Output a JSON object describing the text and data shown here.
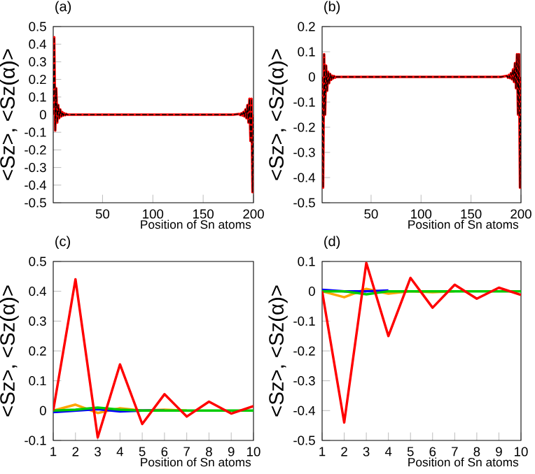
{
  "chart_data": [
    {
      "type": "line",
      "title": "(a)",
      "xlabel": "Position of Sn atoms",
      "ylabel": "<Sz>, <Sz(α)>",
      "xlim": [
        1,
        200
      ],
      "xticks": [
        50,
        100,
        150,
        200
      ],
      "ylim": [
        -0.5,
        0.5
      ],
      "yticks": [
        -0.5,
        -0.4,
        -0.3,
        -0.2,
        -0.1,
        0,
        0.1,
        0.2,
        0.3,
        0.4,
        0.5
      ],
      "grid": false,
      "marker": "none",
      "x": [
        1,
        2,
        3,
        4,
        5,
        6,
        7,
        8,
        9,
        10,
        11,
        12,
        13,
        14,
        15,
        20,
        180,
        186,
        187,
        188,
        189,
        190,
        191,
        192,
        193,
        194,
        195,
        196,
        197,
        198,
        199,
        200
      ],
      "series": [
        {
          "color": "#ff0000",
          "line_style": "solid",
          "values": [
            0,
            0.44,
            -0.09,
            0.15,
            -0.045,
            0.055,
            -0.02,
            0.03,
            -0.01,
            0.015,
            -0.005,
            0.008,
            -0.003,
            0.004,
            0,
            0,
            0,
            0.004,
            -0.003,
            0.008,
            -0.005,
            0.015,
            -0.01,
            0.03,
            -0.02,
            0.055,
            -0.045,
            0.09,
            -0.15,
            0.09,
            -0.44,
            0
          ]
        },
        {
          "color": "#000000",
          "line_style": "dashed",
          "values": [
            0,
            0.44,
            -0.09,
            0.15,
            -0.045,
            0.055,
            -0.02,
            0.03,
            -0.01,
            0.015,
            -0.005,
            0.008,
            -0.003,
            0.004,
            0,
            0,
            0,
            0.004,
            -0.003,
            0.008,
            -0.005,
            0.015,
            -0.01,
            0.03,
            -0.02,
            0.055,
            -0.045,
            0.09,
            -0.15,
            0.09,
            -0.44,
            0
          ]
        }
      ]
    },
    {
      "type": "line",
      "title": "(b)",
      "xlabel": "Position of Sn atoms",
      "ylabel": "<Sz>, <Sz(α)>",
      "xlim": [
        1,
        200
      ],
      "xticks": [
        50,
        100,
        150,
        200
      ],
      "ylim": [
        -0.5,
        0.2
      ],
      "yticks": [
        -0.5,
        -0.4,
        -0.3,
        -0.2,
        -0.1,
        0,
        0.1,
        0.2
      ],
      "grid": false,
      "marker": "none",
      "x": [
        1,
        2,
        3,
        4,
        5,
        6,
        7,
        8,
        9,
        10,
        11,
        12,
        13,
        14,
        15,
        20,
        180,
        186,
        187,
        188,
        189,
        190,
        191,
        192,
        193,
        194,
        195,
        196,
        197,
        198,
        199,
        200
      ],
      "series": [
        {
          "color": "#ff0000",
          "line_style": "solid",
          "values": [
            0,
            -0.44,
            0.09,
            -0.15,
            0.045,
            -0.055,
            0.02,
            -0.025,
            0.012,
            -0.012,
            0.005,
            -0.006,
            0.003,
            -0.003,
            0,
            0,
            0,
            0.004,
            -0.003,
            0.008,
            -0.005,
            0.015,
            -0.01,
            0.03,
            -0.02,
            0.055,
            -0.045,
            0.09,
            -0.15,
            0.09,
            -0.44,
            0
          ]
        },
        {
          "color": "#000000",
          "line_style": "dashed",
          "values": [
            0,
            -0.44,
            0.09,
            -0.15,
            0.045,
            -0.055,
            0.02,
            -0.025,
            0.012,
            -0.012,
            0.005,
            -0.006,
            0.003,
            -0.003,
            0,
            0,
            0,
            0.004,
            -0.003,
            0.008,
            -0.005,
            0.015,
            -0.01,
            0.03,
            -0.02,
            0.055,
            -0.045,
            0.09,
            -0.15,
            0.09,
            -0.44,
            0
          ]
        }
      ]
    },
    {
      "type": "line",
      "title": "(c)",
      "xlabel": "Position of Sn atoms",
      "ylabel": "<Sz>, <Sz(α)>",
      "xlim": [
        1,
        10
      ],
      "xticks": [
        1,
        2,
        3,
        4,
        5,
        6,
        7,
        8,
        9,
        10
      ],
      "ylim": [
        -0.1,
        0.5
      ],
      "yticks": [
        -0.1,
        0,
        0.1,
        0.2,
        0.3,
        0.4,
        0.5
      ],
      "grid": false,
      "marker": "none",
      "x": [
        1,
        2,
        3,
        4,
        5,
        6,
        7,
        8,
        9,
        10
      ],
      "series": [
        {
          "color": "#ffa500",
          "line_style": "solid",
          "values": [
            0,
            0.02,
            -0.008,
            0.008,
            0,
            0.003,
            0,
            null,
            null,
            null
          ]
        },
        {
          "color": "#0000ff",
          "line_style": "solid",
          "values": [
            -0.005,
            0,
            0.005,
            -0.003,
            0,
            0,
            null,
            null,
            null,
            null
          ]
        },
        {
          "color": "#00cc00",
          "line_style": "solid",
          "values": [
            0,
            0.003,
            0.01,
            0.003,
            0,
            0,
            0,
            0,
            0,
            0
          ]
        },
        {
          "color": "#ff0000",
          "line_style": "solid",
          "values": [
            0,
            0.44,
            -0.09,
            0.155,
            -0.045,
            0.055,
            -0.02,
            0.03,
            -0.01,
            0.015
          ]
        }
      ]
    },
    {
      "type": "line",
      "title": "(d)",
      "xlabel": "Position of Sn atoms",
      "ylabel": "<Sz>, <Sz(α)>",
      "xlim": [
        1,
        10
      ],
      "xticks": [
        1,
        2,
        3,
        4,
        5,
        6,
        7,
        8,
        9,
        10
      ],
      "ylim": [
        -0.5,
        0.1
      ],
      "yticks": [
        -0.5,
        -0.4,
        -0.3,
        -0.2,
        -0.1,
        0,
        0.1
      ],
      "grid": false,
      "marker": "none",
      "x": [
        1,
        2,
        3,
        4,
        5,
        6,
        7,
        8,
        9,
        10
      ],
      "series": [
        {
          "color": "#ffa500",
          "line_style": "solid",
          "values": [
            0,
            -0.02,
            0.008,
            -0.008,
            0,
            -0.003,
            0,
            null,
            null,
            null
          ]
        },
        {
          "color": "#0000ff",
          "line_style": "solid",
          "values": [
            0.005,
            0,
            0,
            0.003,
            null,
            null,
            null,
            null,
            null,
            null
          ]
        },
        {
          "color": "#00cc00",
          "line_style": "solid",
          "values": [
            0,
            0,
            -0.01,
            0,
            0,
            0,
            0,
            0,
            0,
            0
          ]
        },
        {
          "color": "#ff0000",
          "line_style": "solid",
          "values": [
            0,
            -0.44,
            0.095,
            -0.15,
            0.045,
            -0.055,
            0.022,
            -0.025,
            0.012,
            -0.012
          ]
        }
      ]
    }
  ]
}
